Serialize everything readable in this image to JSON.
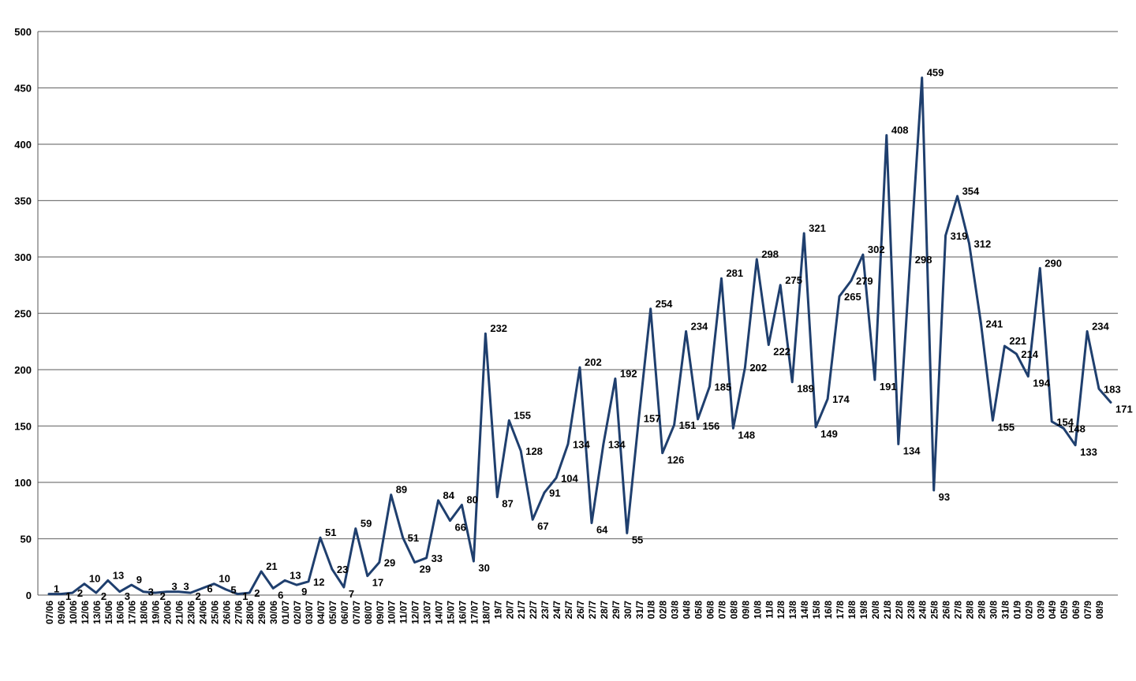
{
  "chart_data": {
    "type": "line",
    "title": "",
    "xlabel": "",
    "ylabel": "",
    "ylim": [
      0,
      500
    ],
    "yticks": [
      0,
      50,
      100,
      150,
      200,
      250,
      300,
      350,
      400,
      450,
      500
    ],
    "grid": true,
    "legend": "none",
    "line_color": "#1f3f6e",
    "x_tick_labels": [
      "07/06",
      "09/06",
      "10/06",
      "12/06",
      "13/06",
      "15/06",
      "16/06",
      "17/06",
      "18/06",
      "19/06",
      "20/06",
      "21/06",
      "23/06",
      "24/06",
      "25/06",
      "26/06",
      "27/06",
      "28/06",
      "29/06",
      "30/06",
      "01/07",
      "02/07",
      "03/07",
      "04/07",
      "05/07",
      "06/07",
      "07/07",
      "08/07",
      "09/07",
      "10/07",
      "11/07",
      "12/07",
      "13/07",
      "14/07",
      "15/07",
      "16/07",
      "17/07",
      "18/07",
      "19/7",
      "20/7",
      "21/7",
      "22/7",
      "23/7",
      "24/7",
      "25/7",
      "26/7",
      "27/7",
      "28/7",
      "29/7",
      "30/7",
      "31/7",
      "01/8",
      "02/8",
      "03/8",
      "04/8",
      "05/8",
      "06/8",
      "07/8",
      "08/8",
      "09/8",
      "10/8",
      "11/8",
      "12/8",
      "13/8",
      "14/8",
      "15/8",
      "16/8",
      "17/8",
      "18/8",
      "19/8",
      "20/8",
      "21/8",
      "22/8",
      "23/8",
      "24/8",
      "25/8",
      "26/8",
      "27/8",
      "28/8",
      "29/8",
      "30/8",
      "31/8",
      "01/9",
      "02/9",
      "03/9",
      "04/9",
      "05/9",
      "06/9",
      "07/9",
      "08/9"
    ],
    "values": [
      1,
      1,
      2,
      10,
      2,
      13,
      3,
      9,
      3,
      2,
      3,
      3,
      2,
      6,
      10,
      5,
      1,
      2,
      21,
      6,
      13,
      9,
      12,
      51,
      23,
      7,
      59,
      17,
      29,
      89,
      51,
      29,
      33,
      84,
      66,
      80,
      30,
      232,
      87,
      155,
      128,
      67,
      91,
      104,
      134,
      202,
      64,
      134,
      192,
      55,
      157,
      254,
      126,
      151,
      234,
      156,
      185,
      281,
      148,
      202,
      298,
      222,
      275,
      189,
      321,
      149,
      174,
      265,
      279,
      302,
      191,
      408,
      134,
      298,
      459,
      93,
      319,
      354,
      312,
      241,
      155,
      221,
      214,
      194,
      290,
      154,
      148,
      133,
      234,
      183,
      171
    ],
    "data_labels": [
      "1",
      "1",
      "2",
      "10",
      "2",
      "13",
      "3",
      "9",
      "3",
      "2",
      "3",
      "3",
      "2",
      "6",
      "10",
      "5",
      "1",
      "2",
      "21",
      "6",
      "13",
      "9",
      "12",
      "51",
      "23",
      "7",
      "59",
      "17",
      "29",
      "89",
      "51",
      "29",
      "33",
      "84",
      "66",
      "80",
      "30",
      "232",
      "87",
      "155",
      "128",
      "67",
      "91",
      "104",
      "134",
      "202",
      "64",
      "134",
      "192",
      "55",
      "157",
      "254",
      "126",
      "151",
      "234",
      "156",
      "185",
      "281",
      "148",
      "202",
      "298",
      "222",
      "275",
      "189",
      "321",
      "149",
      "174",
      "265",
      "279",
      "302",
      "191",
      "408",
      "134",
      "298",
      "459",
      "93",
      "319",
      "354",
      "312",
      "241",
      "155",
      "221",
      "214",
      "194",
      "290",
      "154",
      "148",
      "133",
      "234",
      "183",
      "171"
    ]
  }
}
